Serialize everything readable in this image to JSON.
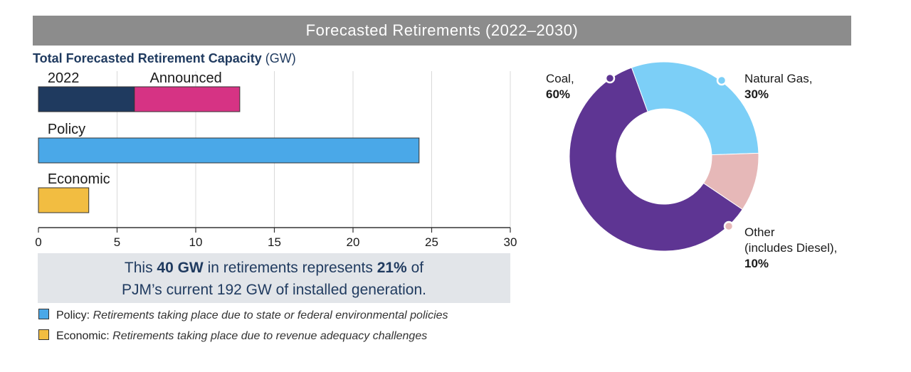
{
  "banner": {
    "title": "Forecasted Retirements (2022–2030)"
  },
  "bar_chart_title": {
    "bold": "Total Forecasted Retirement Capacity",
    "unit": "(GW)"
  },
  "callout": {
    "line1_pre": "This ",
    "line1_b1": "40 GW",
    "line1_mid": " in retirements represents ",
    "line1_b2": "21%",
    "line1_post": " of",
    "line2": "PJM’s current 192 GW of installed generation."
  },
  "legend": [
    {
      "label": "Policy:",
      "desc": "Retirements taking place due to state or federal environmental policies",
      "color": "#4aa8e8"
    },
    {
      "label": "Economic:",
      "desc": "Retirements taking place due to revenue adequacy challenges",
      "color": "#f2bd41"
    }
  ],
  "chart_data": [
    {
      "type": "bar",
      "orientation": "horizontal",
      "title": "Total Forecasted Retirement Capacity (GW)",
      "xlim": [
        0,
        30
      ],
      "xticks": [
        0,
        5,
        10,
        15,
        20,
        25,
        30
      ],
      "grid": true,
      "categories": [
        "2022 / Announced",
        "Policy",
        "Economic"
      ],
      "bars": [
        {
          "category": "2022 / Announced",
          "segments": [
            {
              "name": "2022",
              "value": 6.1,
              "color": "#1f3a5f"
            },
            {
              "name": "Announced",
              "value": 6.7,
              "color": "#d63384"
            }
          ]
        },
        {
          "category": "Policy",
          "segments": [
            {
              "name": "Policy",
              "value": 24.2,
              "color": "#4aa8e8"
            }
          ]
        },
        {
          "category": "Economic",
          "segments": [
            {
              "name": "Economic",
              "value": 3.2,
              "color": "#f2bd41"
            }
          ]
        }
      ]
    },
    {
      "type": "pie",
      "donut": true,
      "slices": [
        {
          "name": "Coal,",
          "value": 60,
          "label": "60%",
          "color": "#5e3593",
          "marker": "#5e3593"
        },
        {
          "name": "Natural Gas,",
          "value": 30,
          "label": "30%",
          "color": "#7ccff7",
          "marker": "#7ccff7"
        },
        {
          "name": "Other (includes Diesel),",
          "value": 10,
          "label": "10%",
          "color": "#e6b8b8",
          "marker": "#e6b8b8"
        }
      ],
      "labels": {
        "coal": [
          "Coal,",
          "60%"
        ],
        "gas": [
          "Natural Gas,",
          "30%"
        ],
        "other": [
          "Other",
          "(includes Diesel),",
          "10%"
        ]
      }
    }
  ]
}
